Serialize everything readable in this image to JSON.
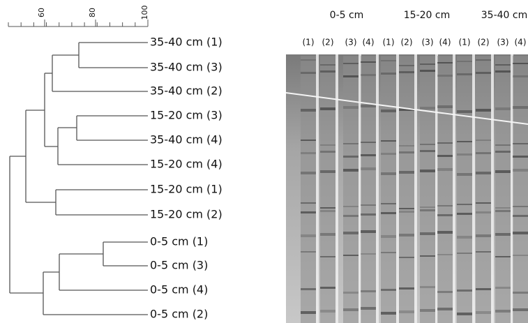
{
  "scale": {
    "ticks": [
      "60",
      "80",
      "100"
    ]
  },
  "leaves": [
    "35-40 cm (1)",
    "35-40 cm (3)",
    "35-40 cm (2)",
    "15-20 cm (3)",
    "35-40 cm (4)",
    "15-20 cm (4)",
    "15-20 cm (1)",
    "15-20 cm (2)",
    "0-5 cm (1)",
    "0-5 cm (3)",
    "0-5 cm (4)",
    "0-5 cm (2)"
  ],
  "gel": {
    "groups": [
      "0-5 cm",
      "15-20 cm",
      "35-40 cm"
    ],
    "lanes": [
      "(1)",
      "(2)",
      "(3)",
      "(4)",
      "(1)",
      "(2)",
      "(3)",
      "(4)",
      "(1)",
      "(2)",
      "(3)",
      "(4)"
    ]
  }
}
